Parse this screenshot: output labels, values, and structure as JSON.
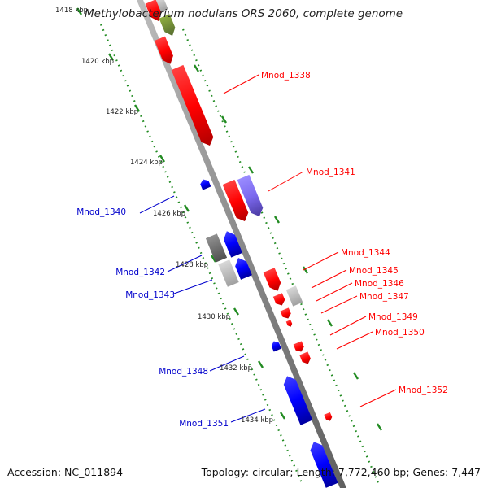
{
  "title": "Methylobacterium nodulans ORS 2060, complete genome",
  "footer": {
    "accession": "Accession: NC_011894",
    "summary": "Topology: circular; Length: 7,772,460 bp; Genes: 7,447"
  },
  "ticks": [
    {
      "label": "1418 kbp",
      "kbp": 1418
    },
    {
      "label": "1420 kbp",
      "kbp": 1420
    },
    {
      "label": "1422 kbp",
      "kbp": 1422
    },
    {
      "label": "1424 kbp",
      "kbp": 1424
    },
    {
      "label": "1426 kbp",
      "kbp": 1426
    },
    {
      "label": "1428 kbp",
      "kbp": 1428
    },
    {
      "label": "1430 kbp",
      "kbp": 1430
    },
    {
      "label": "1432 kbp",
      "kbp": 1432
    },
    {
      "label": "1434 kbp",
      "kbp": 1434
    }
  ],
  "labels": [
    {
      "name": "Mnod_1338",
      "strand": "forward"
    },
    {
      "name": "Mnod_1341",
      "strand": "forward"
    },
    {
      "name": "Mnod_1340",
      "strand": "reverse"
    },
    {
      "name": "Mnod_1342",
      "strand": "reverse"
    },
    {
      "name": "Mnod_1343",
      "strand": "reverse"
    },
    {
      "name": "Mnod_1344",
      "strand": "forward"
    },
    {
      "name": "Mnod_1345",
      "strand": "forward"
    },
    {
      "name": "Mnod_1346",
      "strand": "forward"
    },
    {
      "name": "Mnod_1347",
      "strand": "forward"
    },
    {
      "name": "Mnod_1349",
      "strand": "forward"
    },
    {
      "name": "Mnod_1350",
      "strand": "forward"
    },
    {
      "name": "Mnod_1348",
      "strand": "reverse"
    },
    {
      "name": "Mnod_1351",
      "strand": "reverse"
    },
    {
      "name": "Mnod_1352",
      "strand": "forward"
    }
  ],
  "colors": {
    "forward_gene": "#ff0000",
    "reverse_gene": "#0000ff",
    "forward_gray": "#b0b0b0",
    "reverse_gray": "#707070",
    "forward_purple": "#7b68ee",
    "green_feature": "#6b8e23",
    "backbone": "#808080",
    "tick_marks": "#228b22",
    "forward_label": "#ff0000",
    "reverse_label": "#0000cc"
  }
}
